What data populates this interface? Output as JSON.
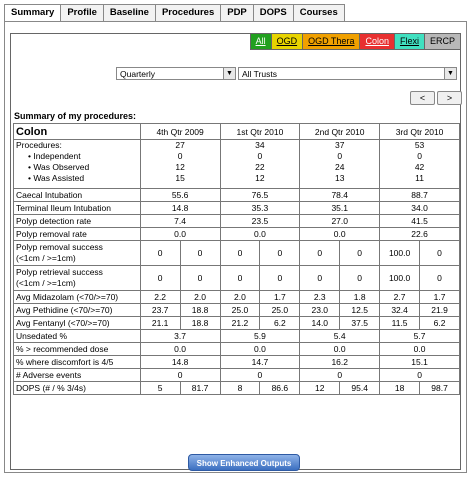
{
  "tabs": [
    "Summary",
    "Profile",
    "Baseline",
    "Procedures",
    "PDP",
    "DOPS",
    "Courses"
  ],
  "filters": [
    {
      "label": "All",
      "bg": "#22a020",
      "fg": "#ffffff"
    },
    {
      "label": "OGD",
      "bg": "#e8d400",
      "fg": "#000000"
    },
    {
      "label": "OGD Thera",
      "bg": "#f0a000",
      "fg": "#000000"
    },
    {
      "label": "Colon",
      "bg": "#e83030",
      "fg": "#ffffff"
    },
    {
      "label": "Flexi",
      "bg": "#40e0c0",
      "fg": "#000000"
    },
    {
      "label": "ERCP",
      "bg": "#b8b8b8",
      "fg": "#000000"
    }
  ],
  "period_select": "Quarterly",
  "trust_select": "All Trusts",
  "nav": {
    "prev": "<",
    "next": ">"
  },
  "summary_title": "Summary of my procedures:",
  "table": {
    "corner": "Colon",
    "quarters": [
      "4th Qtr 2009",
      "1st Qtr 2010",
      "2nd Qtr 2010",
      "3rd Qtr 2010"
    ],
    "procedures": {
      "label": "Procedures:",
      "subs": [
        "Independent",
        "Was Observed",
        "Was Assisted"
      ],
      "values": [
        [
          "27",
          "0",
          "12",
          "15"
        ],
        [
          "34",
          "0",
          "22",
          "12"
        ],
        [
          "37",
          "0",
          "24",
          "13"
        ],
        [
          "53",
          "0",
          "42",
          "11"
        ]
      ]
    },
    "single_rows": [
      {
        "label": "Caecal Intubation",
        "values": [
          "55.6",
          "76.5",
          "78.4",
          "88.7"
        ]
      },
      {
        "label": "Terminal Ileum Intubation",
        "values": [
          "14.8",
          "35.3",
          "35.1",
          "34.0"
        ]
      },
      {
        "label": "Polyp detection rate",
        "values": [
          "7.4",
          "23.5",
          "27.0",
          "41.5"
        ]
      },
      {
        "label": "Polyp removal rate",
        "values": [
          "0.0",
          "0.0",
          "0.0",
          "22.6"
        ]
      }
    ],
    "success_rows": [
      {
        "label": "Polyp removal success",
        "label2": "(<1cm / >=1cm)",
        "values": [
          "0",
          "0",
          "0",
          "0",
          "0",
          "0",
          "100.0",
          "0"
        ]
      },
      {
        "label": "Polyp retrieval success",
        "label2": "(<1cm / >=1cm)",
        "values": [
          "0",
          "0",
          "0",
          "0",
          "0",
          "0",
          "100.0",
          "0"
        ]
      }
    ],
    "pair_rows": [
      {
        "label": "Avg Midazolam (<70/>=70)",
        "values": [
          "2.2",
          "2.0",
          "2.0",
          "1.7",
          "2.3",
          "1.8",
          "2.7",
          "1.7"
        ]
      },
      {
        "label": "Avg Pethidine (<70/>=70)",
        "values": [
          "23.7",
          "18.8",
          "25.0",
          "25.0",
          "23.0",
          "12.5",
          "32.4",
          "21.9"
        ]
      },
      {
        "label": "Avg Fentanyl (<70/>=70)",
        "values": [
          "21.1",
          "18.8",
          "21.2",
          "6.2",
          "14.0",
          "37.5",
          "11.5",
          "6.2"
        ]
      }
    ],
    "tail_rows": [
      {
        "label": "Unsedated %",
        "values": [
          "3.7",
          "5.9",
          "5.4",
          "5.7"
        ]
      },
      {
        "label": "% > recommended dose",
        "values": [
          "0.0",
          "0.0",
          "0.0",
          "0.0"
        ]
      },
      {
        "label": "% where discomfort is 4/5",
        "values": [
          "14.8",
          "14.7",
          "16.2",
          "15.1"
        ]
      },
      {
        "label": "# Adverse events",
        "values": [
          "0",
          "0",
          "0",
          "0"
        ]
      }
    ],
    "dops_row": {
      "label": "DOPS (# / % 3/4s)",
      "values": [
        "5",
        "81.7",
        "8",
        "86.6",
        "12",
        "95.4",
        "18",
        "98.7"
      ]
    }
  },
  "outputs_button": "Show Enhanced Outputs"
}
